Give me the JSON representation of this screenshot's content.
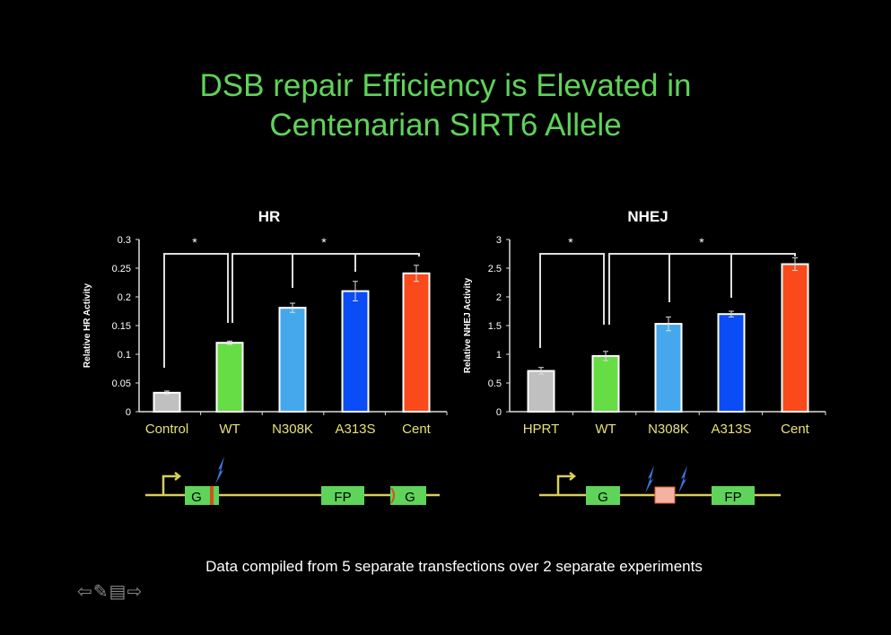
{
  "slide": {
    "title_line1": "DSB repair Efficiency is Elevated in",
    "title_line2": "Centenarian SIRT6 Allele",
    "footnote": "Data compiled from 5 separate transfections over 2 separate experiments"
  },
  "chart_data": [
    {
      "type": "bar",
      "title": "HR",
      "ylabel": "Relative HR Activity",
      "xlabel": "",
      "categories": [
        "Control",
        "WT",
        "N308K",
        "A313S",
        "Cent"
      ],
      "values": [
        0.033,
        0.12,
        0.181,
        0.21,
        0.241
      ],
      "errors": [
        0.003,
        0.003,
        0.008,
        0.017,
        0.014
      ],
      "colors": [
        "#c0c0c0",
        "#66dd44",
        "#45a8ec",
        "#0a4cf5",
        "#fa4a1c"
      ],
      "ylim": [
        0,
        0.3
      ],
      "yticks": [
        "0",
        "0.05",
        "0.1",
        "0.15",
        "0.2",
        "0.25",
        "0.3"
      ],
      "significance": [
        "*",
        "*"
      ]
    },
    {
      "type": "bar",
      "title": "NHEJ",
      "ylabel": "Relative NHEJ Activity",
      "xlabel": "",
      "categories": [
        "HPRT",
        "WT",
        "N308K",
        "A313S",
        "Cent"
      ],
      "values": [
        0.71,
        0.97,
        1.53,
        1.7,
        2.57
      ],
      "errors": [
        0.06,
        0.08,
        0.12,
        0.05,
        0.11
      ],
      "colors": [
        "#c0c0c0",
        "#66dd44",
        "#45a8ec",
        "#0a4cf5",
        "#fa4a1c"
      ],
      "ylim": [
        0,
        3
      ],
      "yticks": [
        "0",
        "0.5",
        "1",
        "1.5",
        "2",
        "2.5",
        "3"
      ],
      "significance": [
        "*",
        "*"
      ]
    }
  ],
  "diagrams": {
    "hr": {
      "box1": "G",
      "box2": "FP",
      "box3": "G"
    },
    "nhej": {
      "box1": "G",
      "box2": "FP"
    }
  },
  "nav_icons": [
    "prev-arrow-icon",
    "pen-icon",
    "menu-icon",
    "next-arrow-icon"
  ]
}
